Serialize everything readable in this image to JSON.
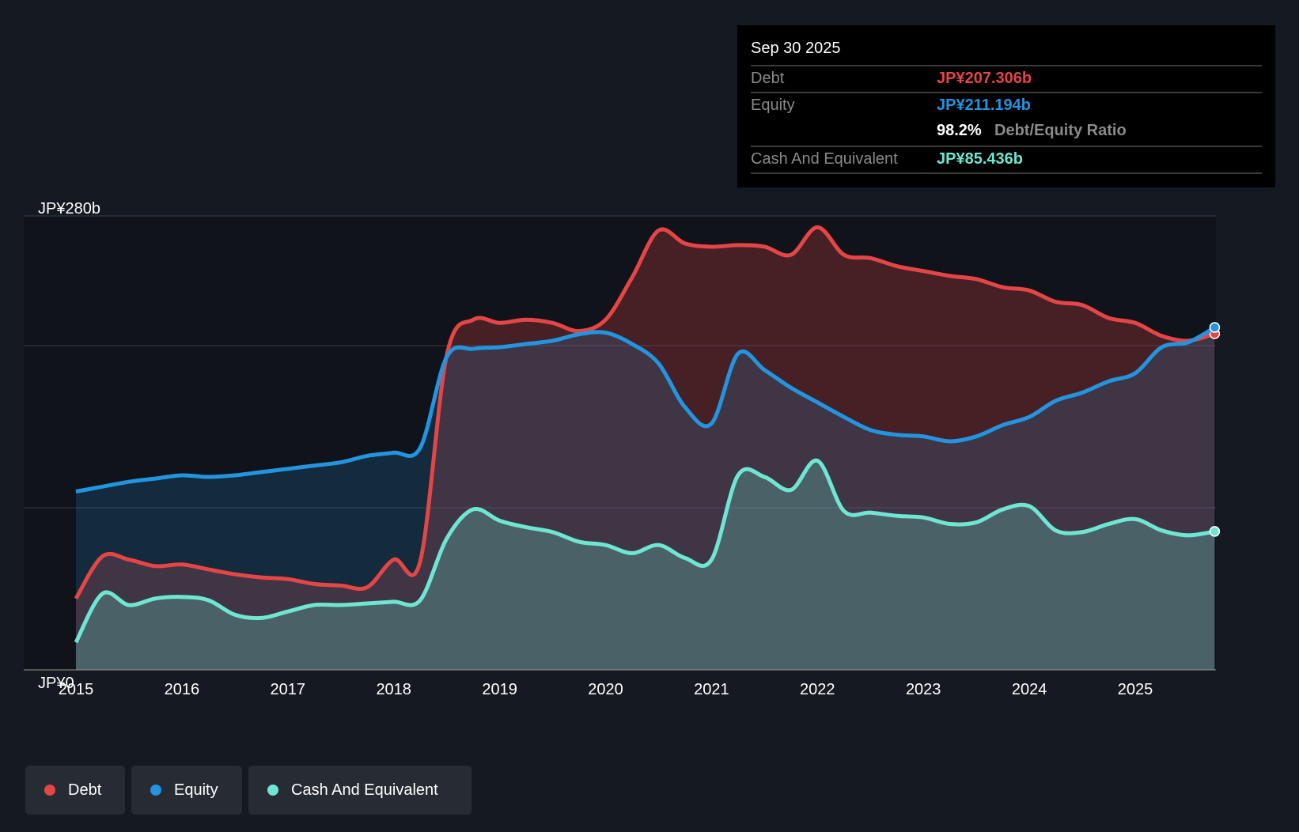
{
  "tooltip": {
    "date": "Sep 30 2025",
    "debt_label": "Debt",
    "debt_value": "JP¥207.306b",
    "equity_label": "Equity",
    "equity_value": "JP¥211.194b",
    "ratio_value": "98.2%",
    "ratio_label": "Debt/Equity Ratio",
    "cash_label": "Cash And Equivalent",
    "cash_value": "JP¥85.436b"
  },
  "legend": [
    {
      "label": "Debt",
      "color": "#e64545"
    },
    {
      "label": "Equity",
      "color": "#2394e0"
    },
    {
      "label": "Cash And Equivalent",
      "color": "#6ee6d2"
    }
  ],
  "chart_data": {
    "type": "area",
    "ylim": [
      0,
      280
    ],
    "y_tick_labels": [
      "JP¥0",
      "JP¥280b"
    ],
    "x_tick_labels": [
      "2015",
      "2016",
      "2017",
      "2018",
      "2019",
      "2020",
      "2021",
      "2022",
      "2023",
      "2024",
      "2025"
    ],
    "x": [
      2015,
      2015.25,
      2015.5,
      2015.75,
      2016,
      2016.25,
      2016.5,
      2016.75,
      2017,
      2017.25,
      2017.5,
      2017.75,
      2018,
      2018.25,
      2018.5,
      2018.75,
      2019,
      2019.25,
      2019.5,
      2019.75,
      2020,
      2020.25,
      2020.5,
      2020.75,
      2021,
      2021.25,
      2021.5,
      2021.75,
      2022,
      2022.25,
      2022.5,
      2022.75,
      2023,
      2023.25,
      2023.5,
      2023.75,
      2024,
      2024.25,
      2024.5,
      2024.75,
      2025,
      2025.25,
      2025.5,
      2025.75
    ],
    "series": [
      {
        "name": "Debt",
        "color": "#e64545",
        "values": [
          44,
          70,
          68,
          64,
          65,
          62,
          59,
          57,
          56,
          53,
          52,
          51,
          68,
          67,
          194,
          216,
          214,
          216,
          214,
          209,
          216,
          242,
          271,
          263,
          261,
          262,
          261,
          256,
          273,
          256,
          254,
          249,
          246,
          243,
          241,
          236,
          234,
          227,
          225,
          217,
          214,
          206,
          203,
          207.3
        ]
      },
      {
        "name": "Equity",
        "color": "#2394e0",
        "values": [
          110,
          113,
          116,
          118,
          120,
          119,
          120,
          122,
          124,
          126,
          128,
          132,
          134,
          137,
          193,
          198,
          199,
          201,
          203,
          207,
          208,
          201,
          189,
          162,
          152,
          195,
          185,
          174,
          165,
          156,
          148,
          145,
          144,
          141,
          144,
          151,
          156,
          166,
          171,
          178,
          183,
          199,
          202,
          211.2
        ]
      },
      {
        "name": "Cash And Equivalent",
        "color": "#6ee6d2",
        "values": [
          17,
          47,
          40,
          44,
          45,
          43,
          34,
          32,
          36,
          40,
          40,
          41,
          42,
          43,
          81,
          99,
          92,
          88,
          85,
          79,
          77,
          72,
          77,
          69,
          68,
          120,
          119,
          111,
          129,
          98,
          97,
          95,
          94,
          90,
          91,
          99,
          101,
          86,
          85,
          90,
          93,
          86,
          83,
          85.4
        ]
      }
    ]
  }
}
